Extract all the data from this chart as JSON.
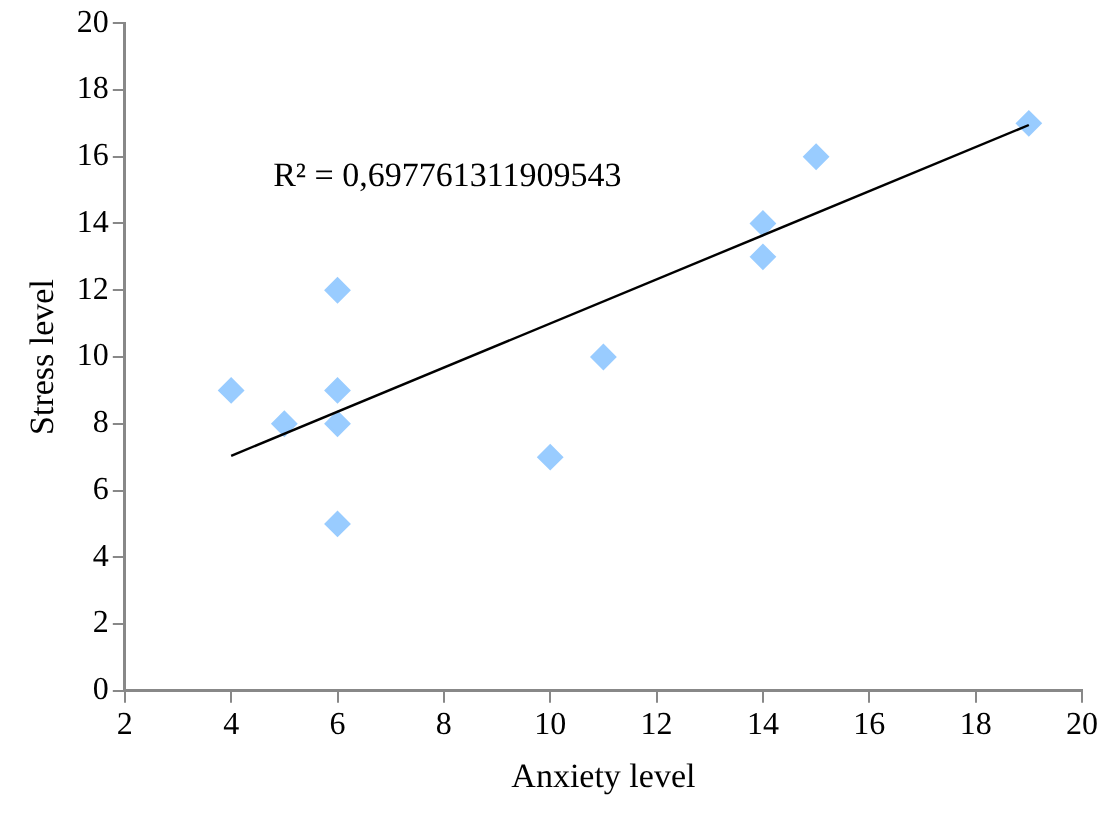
{
  "chart_data": {
    "type": "scatter",
    "xlabel": "Anxiety level",
    "ylabel": "Stress level",
    "x": [
      4,
      5,
      6,
      6,
      6,
      6,
      10,
      11,
      14,
      14,
      15,
      19
    ],
    "series": [
      {
        "type": "scatter",
        "color": "#99ccff",
        "marker": "diamond",
        "values": [
          9,
          8,
          12,
          9,
          8,
          5,
          7,
          10,
          14,
          13,
          16,
          17
        ]
      },
      {
        "type": "line",
        "color": "#000000",
        "marker": "none",
        "x": [
          4,
          19
        ],
        "values": [
          7.04,
          16.95
        ]
      }
    ],
    "xlim": [
      2,
      20
    ],
    "xticks": [
      2,
      4,
      6,
      8,
      10,
      12,
      14,
      16,
      18,
      20
    ],
    "ylim": [
      0,
      20
    ],
    "yticks": [
      0,
      2,
      4,
      6,
      8,
      10,
      12,
      14,
      16,
      18,
      20
    ],
    "grid": false,
    "legend": false,
    "annotations": [
      "R² = 0,697761311909543"
    ]
  }
}
